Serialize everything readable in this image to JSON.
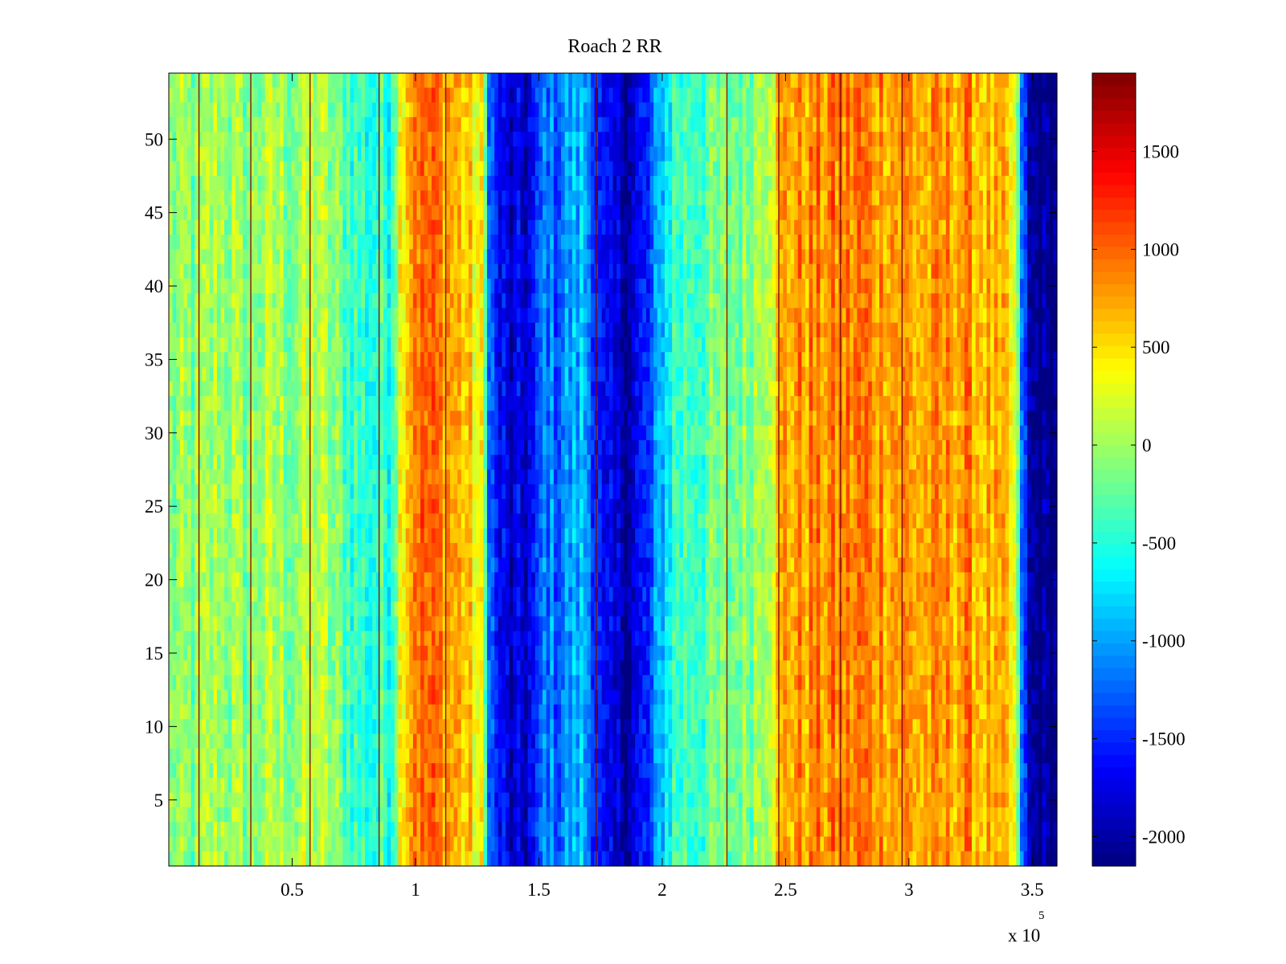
{
  "chart_data": {
    "type": "heatmap",
    "title": "Roach 2 RR",
    "xlabel": "",
    "ylabel": "",
    "x_exponent_label": "x 10",
    "x_exponent_power": "5",
    "xlim": [
      0,
      360000
    ],
    "ylim": [
      0.5,
      54.5
    ],
    "x_ticks": [
      50000,
      100000,
      150000,
      200000,
      250000,
      300000,
      350000
    ],
    "x_tick_labels": [
      "0.5",
      "1",
      "1.5",
      "2",
      "2.5",
      "3",
      "3.5"
    ],
    "y_ticks": [
      5,
      10,
      15,
      20,
      25,
      30,
      35,
      40,
      45,
      50
    ],
    "y_tick_labels": [
      "5",
      "10",
      "15",
      "20",
      "25",
      "30",
      "35",
      "40",
      "45",
      "50"
    ],
    "n_rows": 54,
    "colormap": "jet",
    "clim": [
      -2150,
      1900
    ],
    "colorbar": {
      "ticks": [
        -2000,
        -1500,
        -1000,
        -500,
        0,
        500,
        1000,
        1500
      ],
      "tick_labels": [
        "-2000",
        "-1500",
        "-1000",
        "-500",
        "0",
        "500",
        "1000",
        "1500"
      ]
    },
    "column_profile": {
      "x": [
        0,
        10000,
        20000,
        30000,
        40000,
        50000,
        60000,
        70000,
        80000,
        90000,
        95000,
        100000,
        110000,
        120000,
        127000,
        130000,
        133000,
        140000,
        148000,
        153000,
        157000,
        163000,
        168000,
        172000,
        176000,
        182000,
        188000,
        195000,
        200000,
        205000,
        215000,
        225000,
        235000,
        243000,
        250000,
        260000,
        270000,
        280000,
        290000,
        300000,
        310000,
        320000,
        330000,
        340000,
        343000,
        346000,
        349000,
        360000
      ],
      "values": [
        -80,
        -150,
        60,
        -120,
        30,
        -50,
        120,
        -250,
        -480,
        -420,
        600,
        1000,
        900,
        600,
        250,
        -1100,
        -1650,
        -1900,
        -1700,
        -1050,
        -1250,
        -1000,
        -900,
        -1250,
        -1800,
        -1900,
        -1850,
        -1500,
        -800,
        -400,
        -300,
        -200,
        -80,
        250,
        750,
        800,
        850,
        900,
        850,
        750,
        700,
        800,
        700,
        500,
        200,
        -1200,
        -2100,
        -2150
      ]
    },
    "notes": "Values per column read from the color of each vertical band; row-to-row variation is small relative to column variation."
  }
}
